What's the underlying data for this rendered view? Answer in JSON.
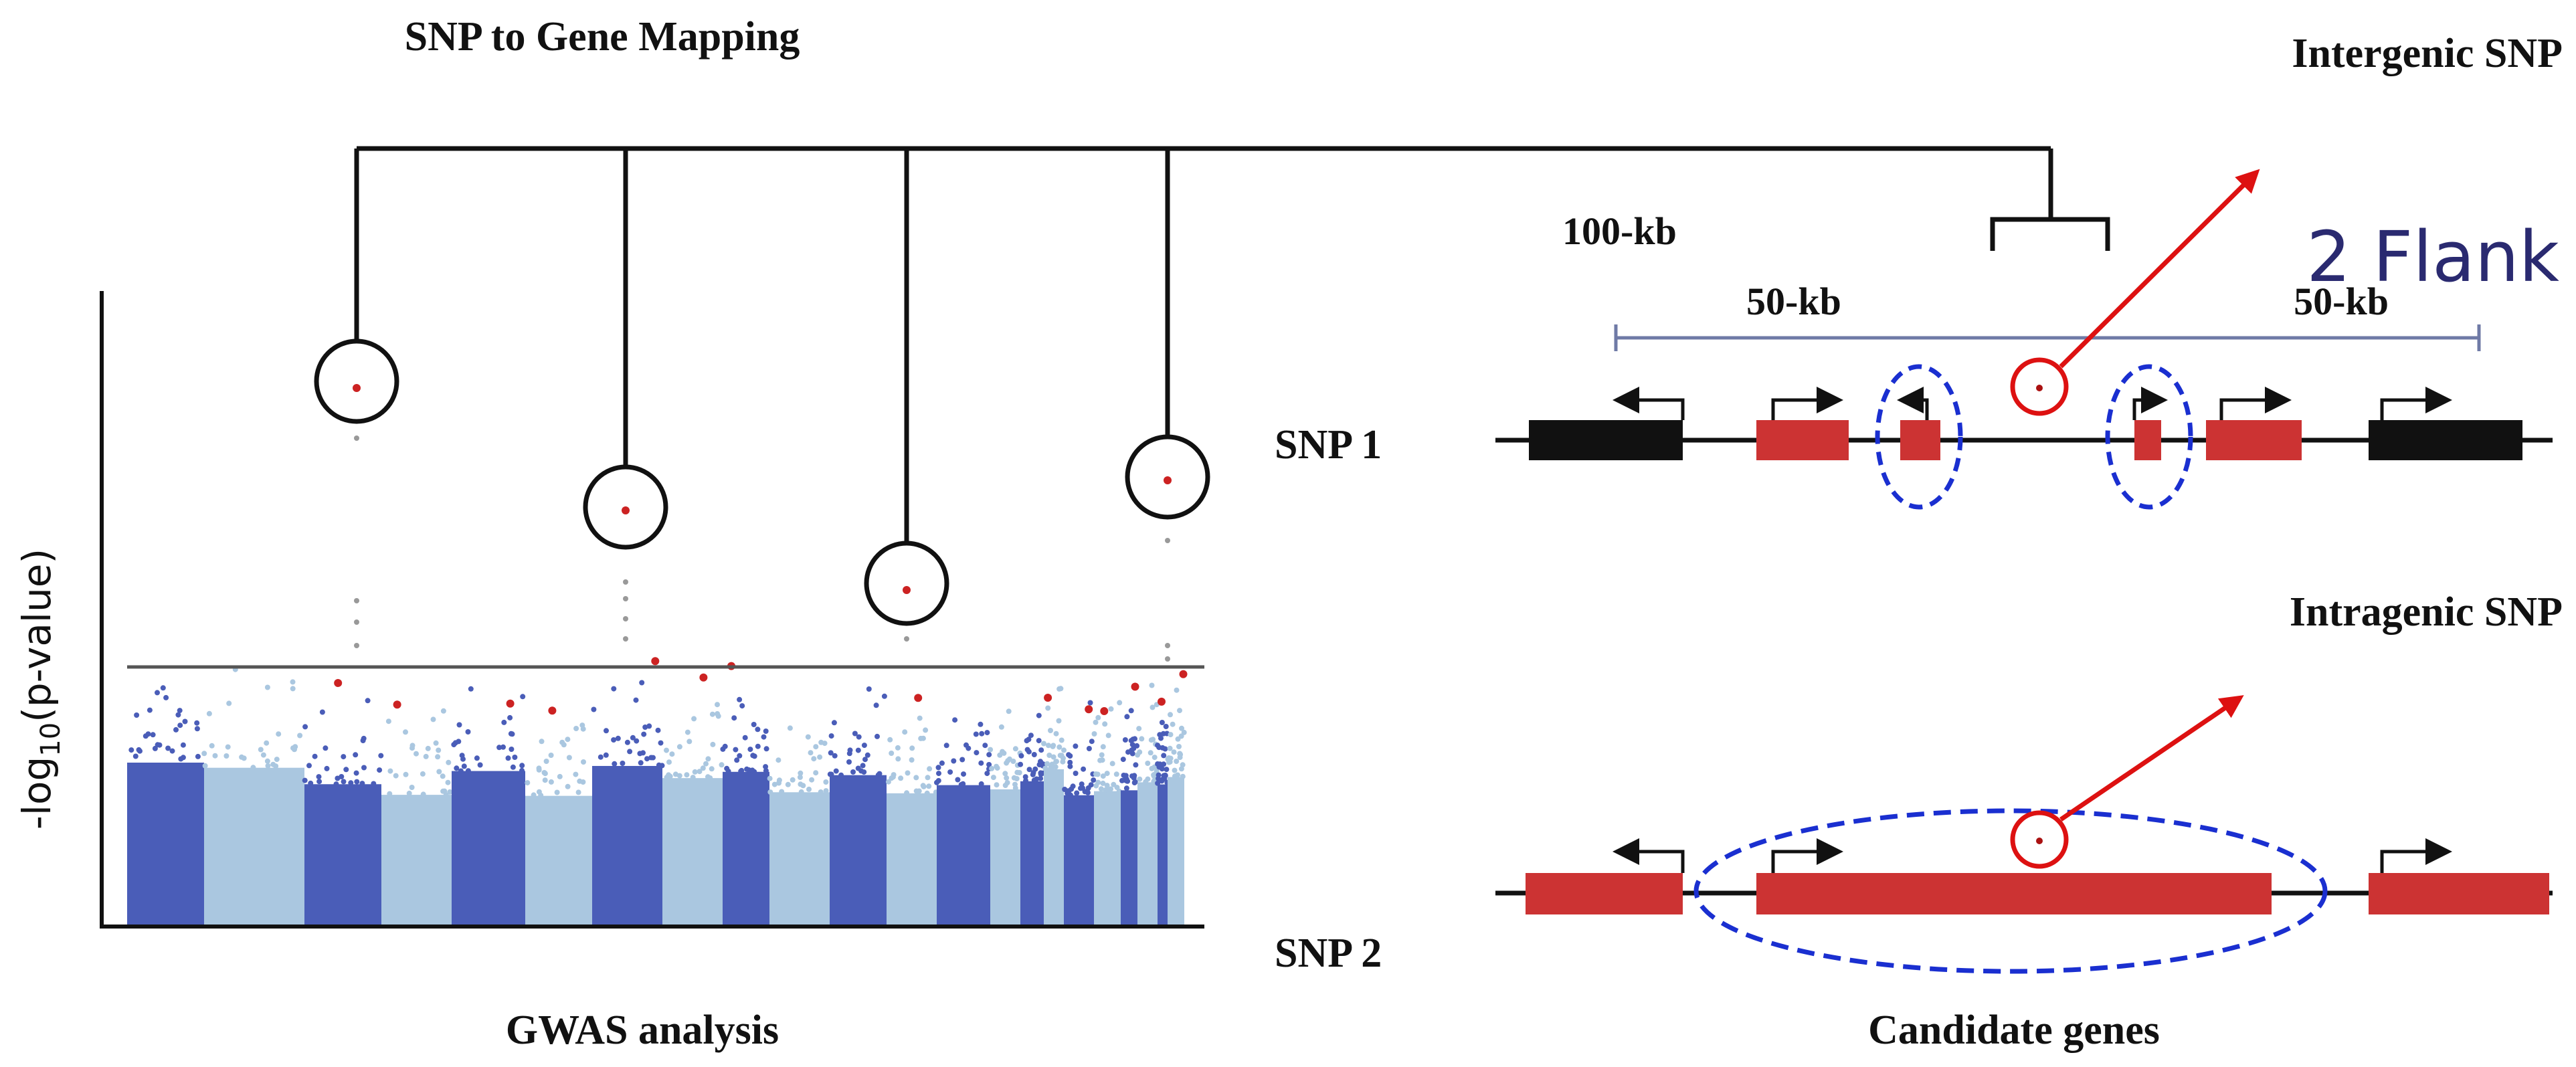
{
  "labels": {
    "title": "SNP to Gene Mapping",
    "gwas_caption": "GWAS analysis",
    "candidate_caption": "Candidate genes",
    "intergenic_title": "Intergenic SNP",
    "intragenic_title": "Intragenic SNP",
    "snp1": "SNP 1",
    "snp2": "SNP 2",
    "flank_total": "100-kb",
    "flank_left": "50-kb",
    "flank_right": "50-kb",
    "flank_title": "2 Flank",
    "yaxis_prefix": "-log",
    "yaxis_sub": "10",
    "yaxis_suffix": "(p-value)"
  },
  "colors": {
    "dark_blue": "#4a5db8",
    "light_blue": "#aac7e0",
    "highlight_red": "#cc2222",
    "gene_red": "#cc3333",
    "gene_black": "#111111",
    "dashed_blue": "#1a2fd0",
    "flank_text": "#2a2a70",
    "range_line": "#6f7aa6"
  }
}
